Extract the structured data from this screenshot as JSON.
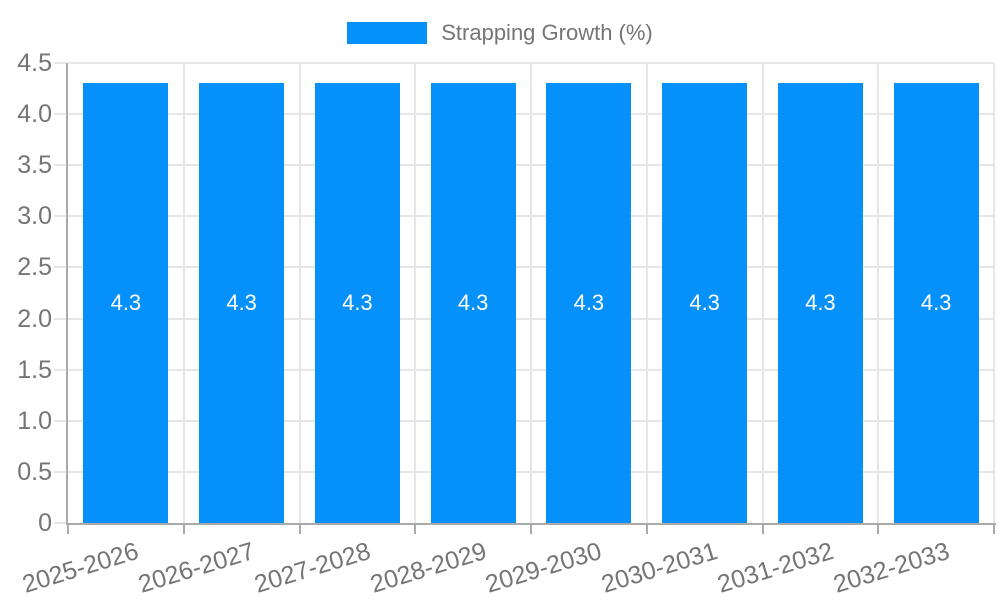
{
  "chart_data": {
    "type": "bar",
    "legend": {
      "label": "Strapping Growth (%)",
      "position": "top-center"
    },
    "categories": [
      "2025-2026",
      "2026-2027",
      "2027-2028",
      "2028-2029",
      "2029-2030",
      "2030-2031",
      "2031-2032",
      "2032-2033"
    ],
    "series": [
      {
        "name": "Strapping Growth (%)",
        "values": [
          4.3,
          4.3,
          4.3,
          4.3,
          4.3,
          4.3,
          4.3,
          4.3
        ]
      }
    ],
    "value_labels": [
      "4.3",
      "4.3",
      "4.3",
      "4.3",
      "4.3",
      "4.3",
      "4.3",
      "4.3"
    ],
    "xlabel": "",
    "ylabel": "",
    "ylim": [
      0,
      4.5
    ],
    "y_ticks": [
      0,
      0.5,
      1,
      1.5,
      2,
      2.5,
      3,
      3.5,
      4,
      4.5
    ],
    "y_tick_labels": [
      "0",
      "0.5",
      "1.0",
      "1.5",
      "2.0",
      "2.5",
      "3.0",
      "3.5",
      "4.0",
      "4.5"
    ],
    "grid": true,
    "x_label_rotation_deg": -17,
    "colors": {
      "bar": "#0590fa",
      "value_label": "#ffffff",
      "axis_text": "#757575",
      "gridline": "#e6e6e6",
      "axis_line": "#aaaaaa",
      "background": "#ffffff"
    }
  }
}
